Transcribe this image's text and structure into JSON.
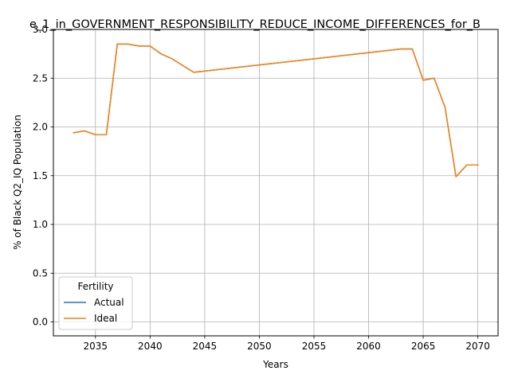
{
  "chart_data": {
    "type": "line",
    "title": "e_1_in_GOVERNMENT_RESPONSIBILITY_REDUCE_INCOME_DIFFERENCES_for_B",
    "xlabel": "Years",
    "ylabel": "% of Black Q2_IQ Population",
    "xlim": [
      2031.15,
      2071.85
    ],
    "ylim": [
      -0.1426,
      3.0
    ],
    "xticks": [
      2035,
      2040,
      2045,
      2050,
      2055,
      2060,
      2065,
      2070
    ],
    "yticks": [
      0.0,
      0.5,
      1.0,
      1.5,
      2.0,
      2.5,
      3.0
    ],
    "xtick_labels": [
      "2035",
      "2040",
      "2045",
      "2050",
      "2055",
      "2060",
      "2065",
      "2070"
    ],
    "ytick_labels": [
      "0.0",
      "0.5",
      "1.0",
      "1.5",
      "2.0",
      "2.5",
      "3.0"
    ],
    "grid": true,
    "legend": {
      "title": "Fertility",
      "placement": "lower-left"
    },
    "series": [
      {
        "name": "Actual",
        "color": "#1f77b4",
        "x": [
          2033,
          2034,
          2035,
          2036,
          2037,
          2038,
          2039,
          2040,
          2041,
          2042,
          2043,
          2044,
          2063,
          2064,
          2065,
          2066,
          2067,
          2068,
          2069,
          2070
        ],
        "y": [
          1.94,
          1.96,
          1.92,
          1.92,
          2.85,
          2.85,
          2.83,
          2.83,
          2.75,
          2.7,
          2.63,
          2.56,
          2.8,
          2.8,
          2.48,
          2.5,
          2.2,
          1.49,
          1.61,
          1.61
        ]
      },
      {
        "name": "Ideal",
        "color": "#ff7f0e",
        "x": [
          2033,
          2034,
          2035,
          2036,
          2037,
          2038,
          2039,
          2040,
          2041,
          2042,
          2043,
          2044,
          2063,
          2064,
          2065,
          2066,
          2067,
          2068,
          2069,
          2070
        ],
        "y": [
          1.94,
          1.96,
          1.92,
          1.92,
          2.85,
          2.85,
          2.83,
          2.83,
          2.75,
          2.7,
          2.63,
          2.56,
          2.8,
          2.8,
          2.48,
          2.5,
          2.2,
          1.49,
          1.61,
          1.61
        ]
      }
    ]
  }
}
